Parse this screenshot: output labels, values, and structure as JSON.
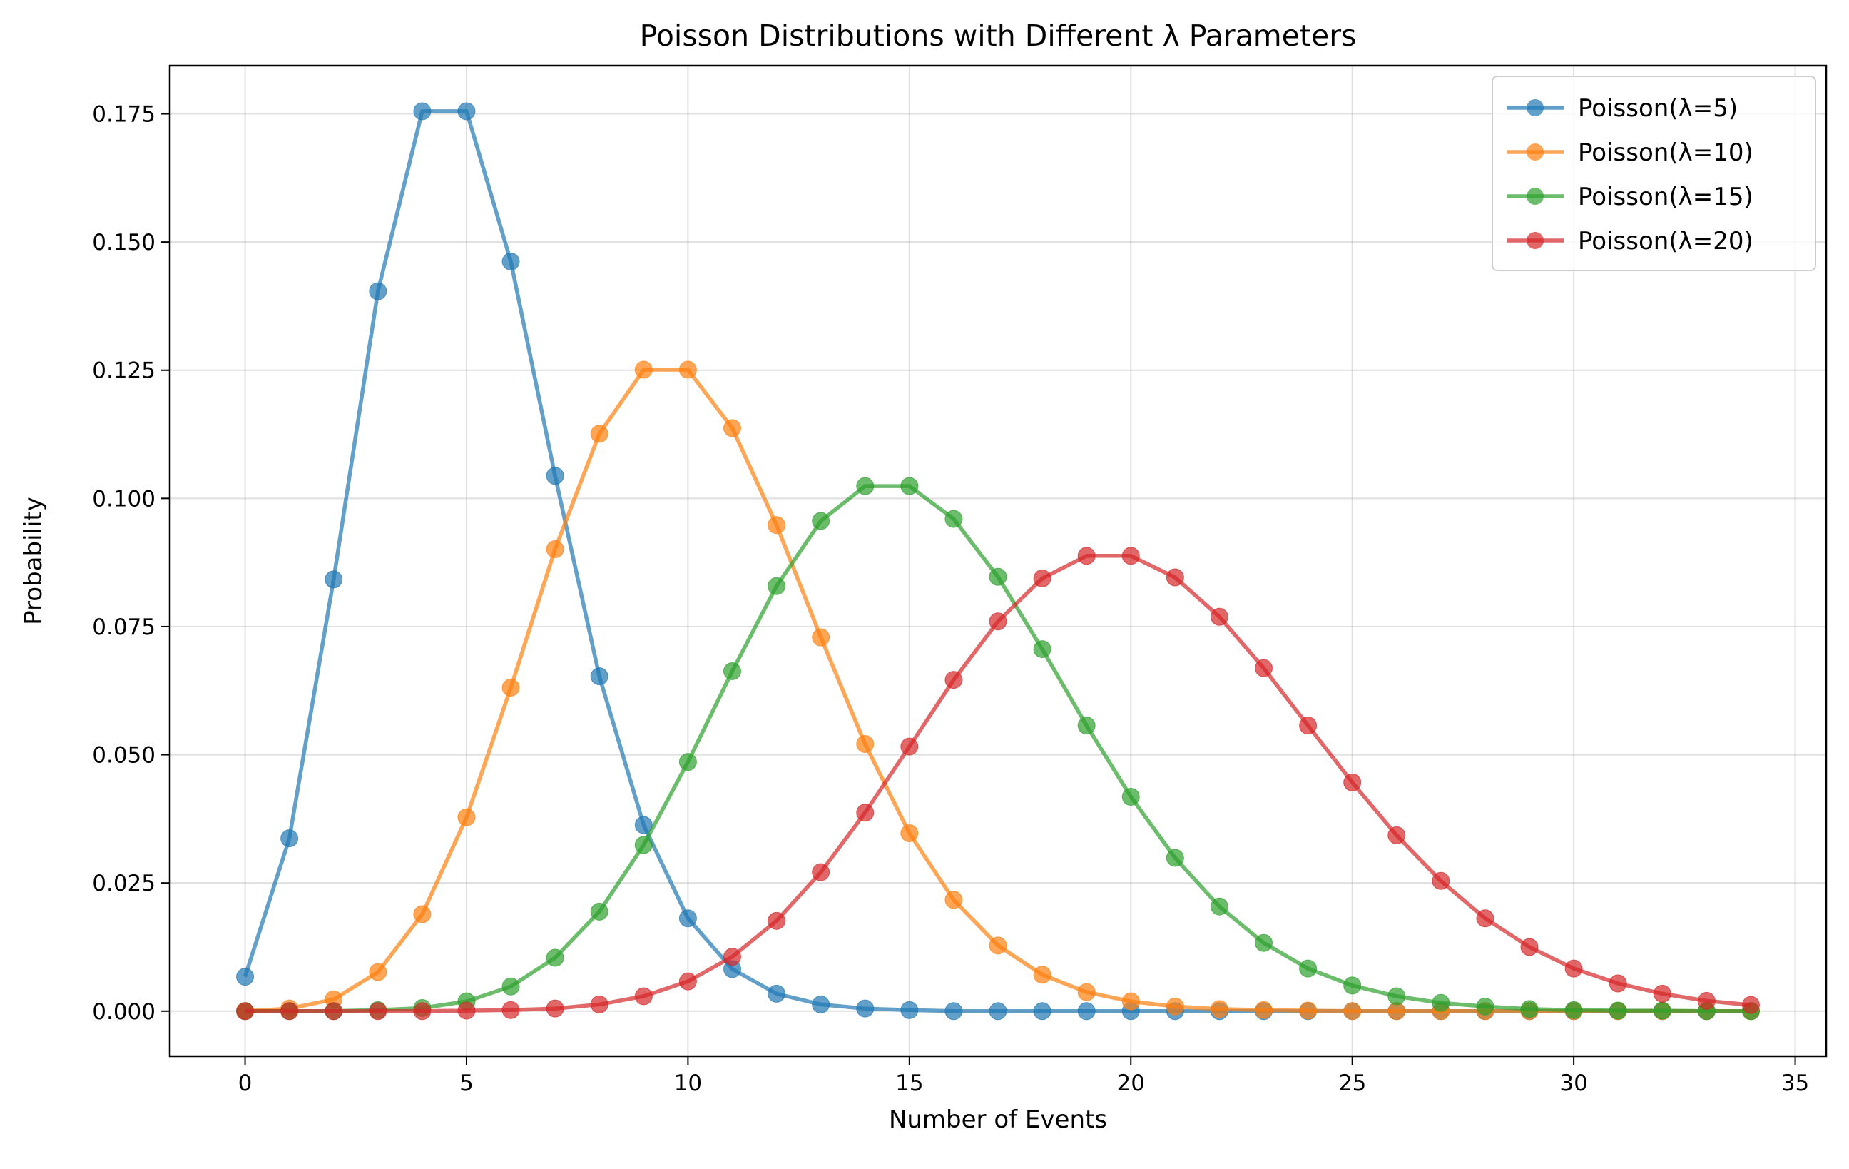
{
  "chart_data": {
    "type": "line",
    "title": "Poisson Distributions with Different λ Parameters",
    "xlabel": "Number of Events",
    "ylabel": "Probability",
    "xlim": [
      -1.7,
      35.7
    ],
    "ylim": [
      -0.0088,
      0.1844
    ],
    "xticks": [
      0,
      5,
      10,
      15,
      20,
      25,
      30,
      35
    ],
    "yticks": [
      0.0,
      0.025,
      0.05,
      0.075,
      0.1,
      0.125,
      0.15,
      0.175
    ],
    "ytick_labels": [
      "0.000",
      "0.025",
      "0.050",
      "0.075",
      "0.100",
      "0.125",
      "0.150",
      "0.175"
    ],
    "grid": true,
    "legend_position": "top-right",
    "x": [
      0,
      1,
      2,
      3,
      4,
      5,
      6,
      7,
      8,
      9,
      10,
      11,
      12,
      13,
      14,
      15,
      16,
      17,
      18,
      19,
      20,
      21,
      22,
      23,
      24,
      25,
      26,
      27,
      28,
      29,
      30,
      31,
      32,
      33,
      34
    ],
    "series": [
      {
        "name": "Poisson(λ=5)",
        "color": "#1f77b4",
        "values": [
          0.0067,
          0.0337,
          0.0842,
          0.1404,
          0.1755,
          0.1755,
          0.1462,
          0.1044,
          0.0653,
          0.0363,
          0.0181,
          0.0082,
          0.0034,
          0.0013,
          0.0005,
          0.0002,
          0.0,
          0.0,
          0.0,
          0.0,
          0.0,
          0.0,
          0.0,
          0.0,
          0.0,
          0.0,
          0.0,
          0.0,
          0.0,
          0.0,
          0.0,
          0.0,
          0.0,
          0.0,
          0.0
        ]
      },
      {
        "name": "Poisson(λ=10)",
        "color": "#ff7f0e",
        "values": [
          0.0,
          0.0005,
          0.0023,
          0.0076,
          0.0189,
          0.0378,
          0.0631,
          0.0901,
          0.1126,
          0.1251,
          0.1251,
          0.1137,
          0.0948,
          0.0729,
          0.0521,
          0.0347,
          0.0217,
          0.0128,
          0.0071,
          0.0037,
          0.0019,
          0.0009,
          0.0004,
          0.0002,
          0.0001,
          0.0,
          0.0,
          0.0,
          0.0,
          0.0,
          0.0,
          0.0,
          0.0,
          0.0,
          0.0
        ]
      },
      {
        "name": "Poisson(λ=15)",
        "color": "#2ca02c",
        "values": [
          0.0,
          0.0,
          0.0,
          0.0002,
          0.0006,
          0.0019,
          0.0048,
          0.0104,
          0.0194,
          0.0324,
          0.0486,
          0.0663,
          0.0829,
          0.0956,
          0.1024,
          0.1024,
          0.096,
          0.0847,
          0.0706,
          0.0557,
          0.0418,
          0.0299,
          0.0204,
          0.0133,
          0.0083,
          0.005,
          0.0029,
          0.0016,
          0.0009,
          0.0004,
          0.0002,
          0.0001,
          0.0001,
          0.0,
          0.0
        ]
      },
      {
        "name": "Poisson(λ=20)",
        "color": "#d62728",
        "values": [
          0.0,
          0.0,
          0.0,
          0.0,
          0.0,
          0.0001,
          0.0002,
          0.0005,
          0.0013,
          0.0029,
          0.0058,
          0.0106,
          0.0176,
          0.0271,
          0.0387,
          0.0516,
          0.0646,
          0.076,
          0.0844,
          0.0888,
          0.0888,
          0.0846,
          0.0769,
          0.0669,
          0.0557,
          0.0446,
          0.0343,
          0.0254,
          0.0181,
          0.0125,
          0.0083,
          0.0054,
          0.0034,
          0.002,
          0.0012
        ]
      }
    ]
  }
}
